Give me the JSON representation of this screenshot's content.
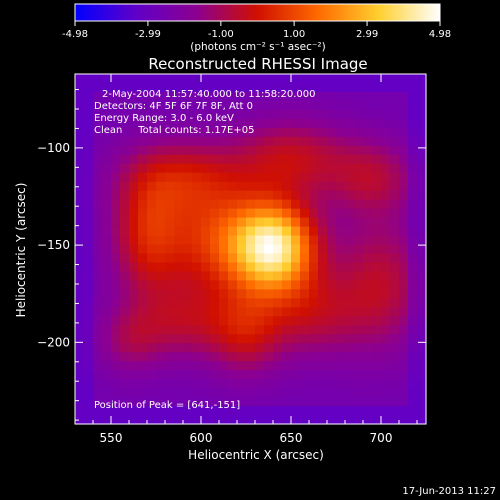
{
  "colorbar": {
    "tick_labels": [
      "-4.98",
      "-2.99",
      "-1.00",
      "1.00",
      "2.99",
      "4.98"
    ],
    "tick_values": [
      -4.98,
      -2.99,
      -1.0,
      1.0,
      2.99,
      4.98
    ],
    "range": [
      -4.98,
      4.98
    ],
    "unit_label": "(photons cm⁻² s⁻¹ asec⁻²)"
  },
  "chart_data": {
    "type": "heatmap",
    "title": "Reconstructed RHESSI Image",
    "xlabel": "Heliocentric X (arcsec)",
    "ylabel": "Heliocentric Y (arcsec)",
    "xlim": [
      530,
      725
    ],
    "ylim": [
      -242,
      -62
    ],
    "x_ticks": [
      550,
      600,
      650,
      700
    ],
    "y_ticks": [
      -100,
      -150,
      -200
    ],
    "colormap": [
      "#0000ff",
      "#6000c8",
      "#8c0090",
      "#d01000",
      "#ff6a00",
      "#ffd030",
      "#ffffff"
    ],
    "info_lines": [
      "2-May-2004 11:57:40.000 to 11:58:20.000",
      "Detectors: 4F 5F 6F 7F 8F, Att 0",
      "Energy Range: 3.0 - 6.0 keV",
      "Clean     Total counts: 1.17E+05"
    ],
    "peak_label": "Position of Peak = [641,-151]",
    "peak": {
      "x": 641,
      "y": -151
    },
    "sources": [
      {
        "x": 641,
        "y": -151,
        "amp": 4.98,
        "sx": 16,
        "sy": 16
      },
      {
        "x": 610,
        "y": -148,
        "amp": 2.4,
        "sx": 22,
        "sy": 20
      },
      {
        "x": 570,
        "y": -145,
        "amp": 2.0,
        "sx": 14,
        "sy": 22
      },
      {
        "x": 590,
        "y": -115,
        "amp": 1.7,
        "sx": 24,
        "sy": 14
      },
      {
        "x": 650,
        "y": -105,
        "amp": 1.7,
        "sx": 22,
        "sy": 14
      },
      {
        "x": 695,
        "y": -115,
        "amp": 1.4,
        "sx": 18,
        "sy": 14
      },
      {
        "x": 700,
        "y": -170,
        "amp": 1.6,
        "sx": 18,
        "sy": 24
      },
      {
        "x": 660,
        "y": -185,
        "amp": 1.5,
        "sx": 20,
        "sy": 16
      },
      {
        "x": 590,
        "y": -190,
        "amp": 1.4,
        "sx": 22,
        "sy": 14
      },
      {
        "x": 625,
        "y": -195,
        "amp": 1.5,
        "sx": 14,
        "sy": 16
      },
      {
        "x": 560,
        "y": -200,
        "amp": 0.9,
        "sx": 12,
        "sy": 12
      }
    ],
    "background_level": -2.6
  },
  "timestamp": "17-Jun-2013 11:27"
}
